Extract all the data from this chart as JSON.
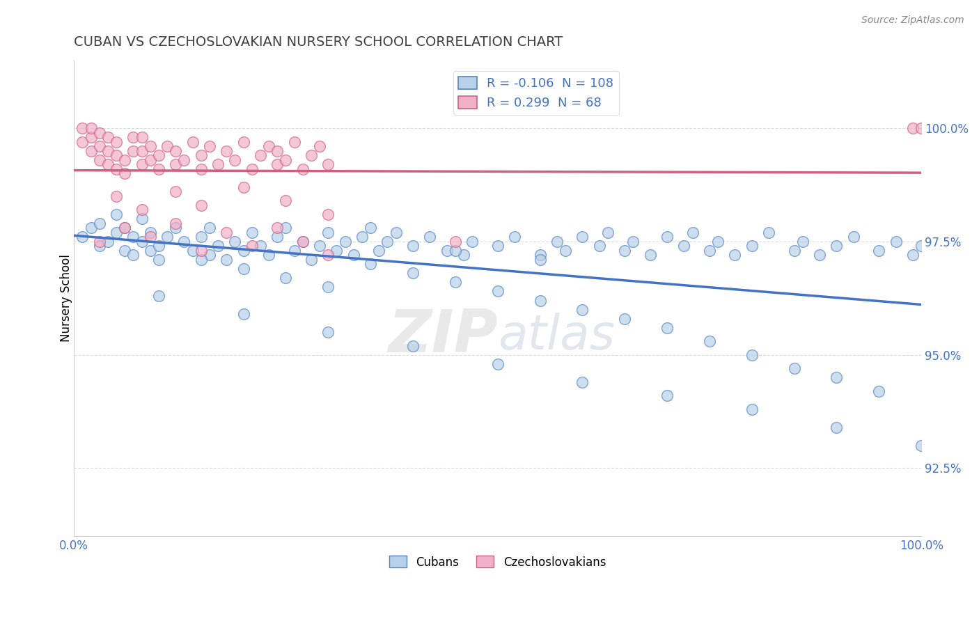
{
  "title": "CUBAN VS CZECHOSLOVAKIAN NURSERY SCHOOL CORRELATION CHART",
  "source": "Source: ZipAtlas.com",
  "ylabel": "Nursery School",
  "xlim": [
    0.0,
    100.0
  ],
  "ylim": [
    91.0,
    101.5
  ],
  "yticks": [
    92.5,
    95.0,
    97.5,
    100.0
  ],
  "ytick_labels": [
    "92.5%",
    "95.0%",
    "97.5%",
    "100.0%"
  ],
  "xticks": [
    0.0,
    100.0
  ],
  "xtick_labels": [
    "0.0%",
    "100.0%"
  ],
  "blue_fill": "#b8d0e8",
  "blue_edge": "#5585c5",
  "pink_fill": "#f0b0c8",
  "pink_edge": "#d06080",
  "blue_line_color": "#4472c4",
  "pink_line_color": "#d06080",
  "legend_blue_label": "Cubans",
  "legend_pink_label": "Czechoslovakians",
  "R_blue": "-0.106",
  "N_blue": "108",
  "R_pink": "0.299",
  "N_pink": "68",
  "watermark_zip": "ZIP",
  "watermark_atlas": "atlas",
  "grid_color": "#cccccc",
  "axis_tick_color": "#4472c4",
  "title_color": "#404040",
  "blue_scatter_x": [
    1,
    2,
    3,
    3,
    4,
    5,
    5,
    6,
    6,
    7,
    7,
    8,
    8,
    9,
    9,
    10,
    10,
    11,
    12,
    13,
    14,
    15,
    16,
    16,
    17,
    18,
    19,
    20,
    21,
    22,
    23,
    24,
    25,
    26,
    27,
    28,
    29,
    30,
    31,
    32,
    33,
    34,
    35,
    36,
    37,
    38,
    40,
    42,
    44,
    46,
    47,
    50,
    52,
    55,
    57,
    58,
    60,
    62,
    63,
    65,
    66,
    68,
    70,
    72,
    73,
    75,
    76,
    78,
    80,
    82,
    85,
    86,
    88,
    90,
    92,
    95,
    97,
    99,
    100,
    15,
    20,
    25,
    30,
    35,
    40,
    45,
    50,
    55,
    60,
    65,
    70,
    75,
    80,
    85,
    90,
    95,
    10,
    20,
    30,
    40,
    50,
    60,
    70,
    80,
    90,
    100,
    45,
    55
  ],
  "blue_scatter_y": [
    97.6,
    97.8,
    97.4,
    97.9,
    97.5,
    97.7,
    98.1,
    97.3,
    97.8,
    97.2,
    97.6,
    98.0,
    97.5,
    97.3,
    97.7,
    97.1,
    97.4,
    97.6,
    97.8,
    97.5,
    97.3,
    97.6,
    97.2,
    97.8,
    97.4,
    97.1,
    97.5,
    97.3,
    97.7,
    97.4,
    97.2,
    97.6,
    97.8,
    97.3,
    97.5,
    97.1,
    97.4,
    97.7,
    97.3,
    97.5,
    97.2,
    97.6,
    97.8,
    97.3,
    97.5,
    97.7,
    97.4,
    97.6,
    97.3,
    97.2,
    97.5,
    97.4,
    97.6,
    97.2,
    97.5,
    97.3,
    97.6,
    97.4,
    97.7,
    97.3,
    97.5,
    97.2,
    97.6,
    97.4,
    97.7,
    97.3,
    97.5,
    97.2,
    97.4,
    97.7,
    97.3,
    97.5,
    97.2,
    97.4,
    97.6,
    97.3,
    97.5,
    97.2,
    97.4,
    97.1,
    96.9,
    96.7,
    96.5,
    97.0,
    96.8,
    96.6,
    96.4,
    96.2,
    96.0,
    95.8,
    95.6,
    95.3,
    95.0,
    94.7,
    94.5,
    94.2,
    96.3,
    95.9,
    95.5,
    95.2,
    94.8,
    94.4,
    94.1,
    93.8,
    93.4,
    93.0,
    97.3,
    97.1
  ],
  "pink_scatter_x": [
    1,
    1,
    2,
    2,
    2,
    3,
    3,
    3,
    4,
    4,
    4,
    5,
    5,
    5,
    6,
    6,
    7,
    7,
    8,
    8,
    8,
    9,
    9,
    10,
    10,
    11,
    12,
    12,
    13,
    14,
    15,
    15,
    16,
    17,
    18,
    19,
    20,
    21,
    22,
    23,
    24,
    24,
    25,
    26,
    27,
    28,
    29,
    30,
    5,
    8,
    12,
    15,
    20,
    25,
    30,
    3,
    6,
    9,
    12,
    15,
    18,
    21,
    24,
    27,
    30,
    99,
    100,
    45
  ],
  "pink_scatter_y": [
    99.7,
    100.0,
    99.5,
    99.8,
    100.0,
    99.3,
    99.6,
    99.9,
    99.2,
    99.5,
    99.8,
    99.1,
    99.4,
    99.7,
    99.0,
    99.3,
    99.5,
    99.8,
    99.2,
    99.5,
    99.8,
    99.3,
    99.6,
    99.1,
    99.4,
    99.6,
    99.2,
    99.5,
    99.3,
    99.7,
    99.1,
    99.4,
    99.6,
    99.2,
    99.5,
    99.3,
    99.7,
    99.1,
    99.4,
    99.6,
    99.2,
    99.5,
    99.3,
    99.7,
    99.1,
    99.4,
    99.6,
    99.2,
    98.5,
    98.2,
    98.6,
    98.3,
    98.7,
    98.4,
    98.1,
    97.5,
    97.8,
    97.6,
    97.9,
    97.3,
    97.7,
    97.4,
    97.8,
    97.5,
    97.2,
    100.0,
    100.0,
    97.5
  ]
}
